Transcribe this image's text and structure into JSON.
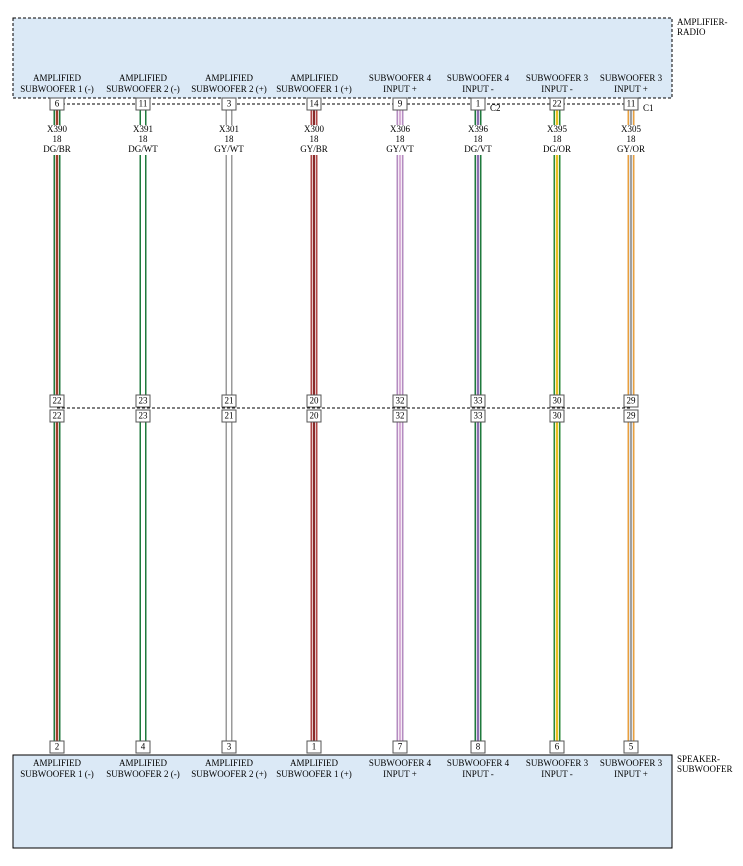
{
  "top_component": {
    "name": [
      "AMPLIFIER-",
      "RADIO"
    ],
    "pins": [
      {
        "label": [
          "AMPLIFIED",
          "SUBWOOFER 1 (-)"
        ],
        "pin": "6"
      },
      {
        "label": [
          "AMPLIFIED",
          "SUBWOOFER 2 (-)"
        ],
        "pin": "11"
      },
      {
        "label": [
          "AMPLIFIED",
          "SUBWOOFER 2 (+)"
        ],
        "pin": "3"
      },
      {
        "label": [
          "AMPLIFIED",
          "SUBWOOFER 1 (+)"
        ],
        "pin": "14"
      },
      {
        "label": [
          "SUBWOOFER 4",
          "INPUT +"
        ],
        "pin": "9"
      },
      {
        "label": [
          "SUBWOOFER 4",
          "INPUT -"
        ],
        "pin": "1"
      },
      {
        "label": [
          "SUBWOOFER 3",
          "INPUT -"
        ],
        "pin": "22"
      },
      {
        "label": [
          "SUBWOOFER 3",
          "INPUT +"
        ],
        "pin": "11"
      }
    ],
    "connectors": [
      {
        "name": "C2",
        "after_pin": 5
      },
      {
        "name": "C1",
        "after_pin": 7
      }
    ]
  },
  "wires": [
    {
      "circuit": "X390",
      "gauge": "18",
      "color": "DG/BR",
      "base_color": "#1f7a3c",
      "stripe_color": "#a0402c"
    },
    {
      "circuit": "X391",
      "gauge": "18",
      "color": "DG/WT",
      "base_color": "#1f7a3c",
      "stripe_color": "#ffffff"
    },
    {
      "circuit": "X301",
      "gauge": "18",
      "color": "GY/WT",
      "base_color": "#9a9a9a",
      "stripe_color": "#ffffff"
    },
    {
      "circuit": "X300",
      "gauge": "18",
      "color": "GY/BR",
      "base_color": "#b04848",
      "stripe_color": "#8a2a2a"
    },
    {
      "circuit": "X306",
      "gauge": "18",
      "color": "GY/VT",
      "base_color": "#b48cc0",
      "stripe_color": "#d8b0d8"
    },
    {
      "circuit": "X396",
      "gauge": "18",
      "color": "DG/VT",
      "base_color": "#1f7a3c",
      "stripe_color": "#8a70b0"
    },
    {
      "circuit": "X395",
      "gauge": "18",
      "color": "DG/OR",
      "base_color": "#2a8a3a",
      "stripe_color": "#e8c020"
    },
    {
      "circuit": "X305",
      "gauge": "18",
      "color": "GY/OR",
      "base_color": "#e8a040",
      "stripe_color": "#a0a0a0"
    }
  ],
  "inline_connector": {
    "top_pins": [
      "22",
      "23",
      "21",
      "20",
      "32",
      "33",
      "30",
      "29"
    ],
    "bottom_pins": [
      "22",
      "23",
      "21",
      "20",
      "32",
      "33",
      "30",
      "29"
    ]
  },
  "bottom_component": {
    "name": [
      "SPEAKER-",
      "SUBWOOFER"
    ],
    "pins": [
      {
        "label": [
          "AMPLIFIED",
          "SUBWOOFER 1 (-)"
        ],
        "pin": "2"
      },
      {
        "label": [
          "AMPLIFIED",
          "SUBWOOFER 2 (-)"
        ],
        "pin": "4"
      },
      {
        "label": [
          "AMPLIFIED",
          "SUBWOOFER 2 (+)"
        ],
        "pin": "3"
      },
      {
        "label": [
          "AMPLIFIED",
          "SUBWOOFER 1 (+)"
        ],
        "pin": "1"
      },
      {
        "label": [
          "SUBWOOFER 4",
          "INPUT +"
        ],
        "pin": "7"
      },
      {
        "label": [
          "SUBWOOFER 4",
          "INPUT -"
        ],
        "pin": "8"
      },
      {
        "label": [
          "SUBWOOFER 3",
          "INPUT -"
        ],
        "pin": "6"
      },
      {
        "label": [
          "SUBWOOFER 3",
          "INPUT +"
        ],
        "pin": "5"
      }
    ]
  }
}
